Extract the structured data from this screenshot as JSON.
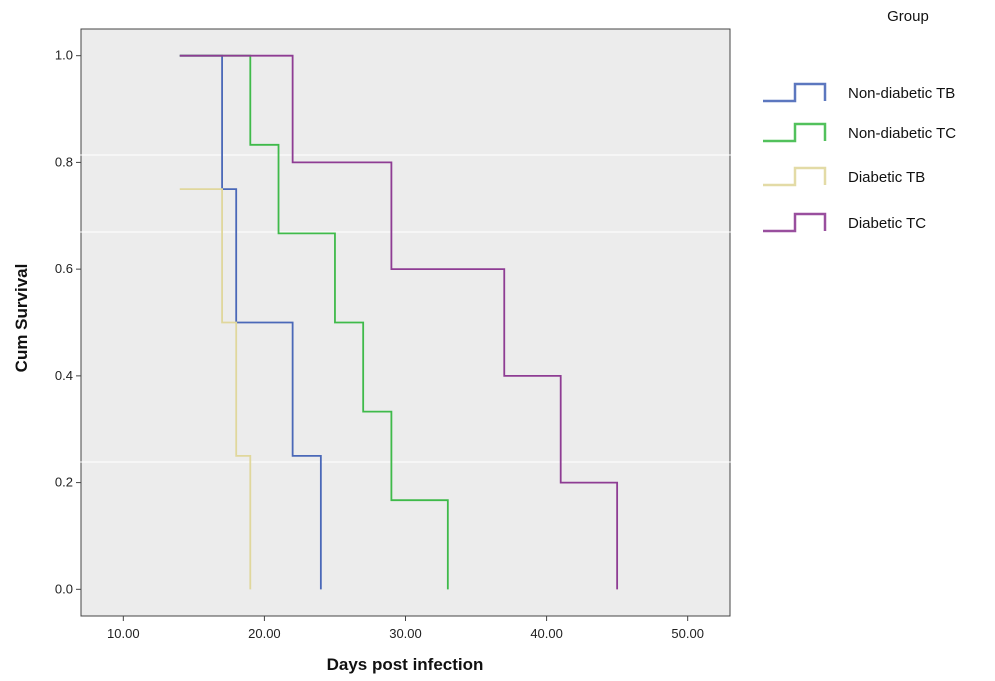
{
  "chart_data": {
    "type": "line",
    "subtype": "kaplan-meier step",
    "xlabel": "Days post infection",
    "ylabel": "Cum Survival",
    "xlim": [
      7,
      53
    ],
    "ylim": [
      -0.05,
      1.05
    ],
    "x_ticks": [
      10,
      20,
      30,
      40,
      50
    ],
    "x_tick_labels": [
      "10.00",
      "20.00",
      "30.00",
      "40.00",
      "50.00"
    ],
    "y_ticks": [
      0.0,
      0.2,
      0.4,
      0.6,
      0.8,
      1.0
    ],
    "y_tick_labels": [
      "0.0",
      "0.2",
      "0.4",
      "0.6",
      "0.8",
      "1.0"
    ],
    "grid": false,
    "plot_background": "#ececec",
    "legend": {
      "title": "Group",
      "placement": "right"
    },
    "series": [
      {
        "name": "Non-diabetic TB",
        "color": "#4a68b8",
        "steps": [
          [
            14,
            1.0
          ],
          [
            17,
            0.75
          ],
          [
            18,
            0.5
          ],
          [
            22,
            0.25
          ],
          [
            24,
            0.0
          ]
        ]
      },
      {
        "name": "Non-diabetic TC",
        "color": "#3fba4a",
        "steps": [
          [
            14,
            1.0
          ],
          [
            19,
            0.833
          ],
          [
            21,
            0.667
          ],
          [
            25,
            0.5
          ],
          [
            27,
            0.333
          ],
          [
            29,
            0.167
          ],
          [
            33,
            0.0
          ]
        ]
      },
      {
        "name": "Diabetic TB",
        "color": "#e0d79c",
        "steps": [
          [
            14,
            0.75
          ],
          [
            17,
            0.5
          ],
          [
            18,
            0.25
          ],
          [
            19,
            0.0
          ]
        ]
      },
      {
        "name": "Diabetic TC",
        "color": "#8e3c93",
        "steps": [
          [
            14,
            1.0
          ],
          [
            22,
            0.8
          ],
          [
            29,
            0.6
          ],
          [
            37,
            0.4
          ],
          [
            41,
            0.2
          ],
          [
            45,
            0.0
          ]
        ]
      }
    ]
  }
}
